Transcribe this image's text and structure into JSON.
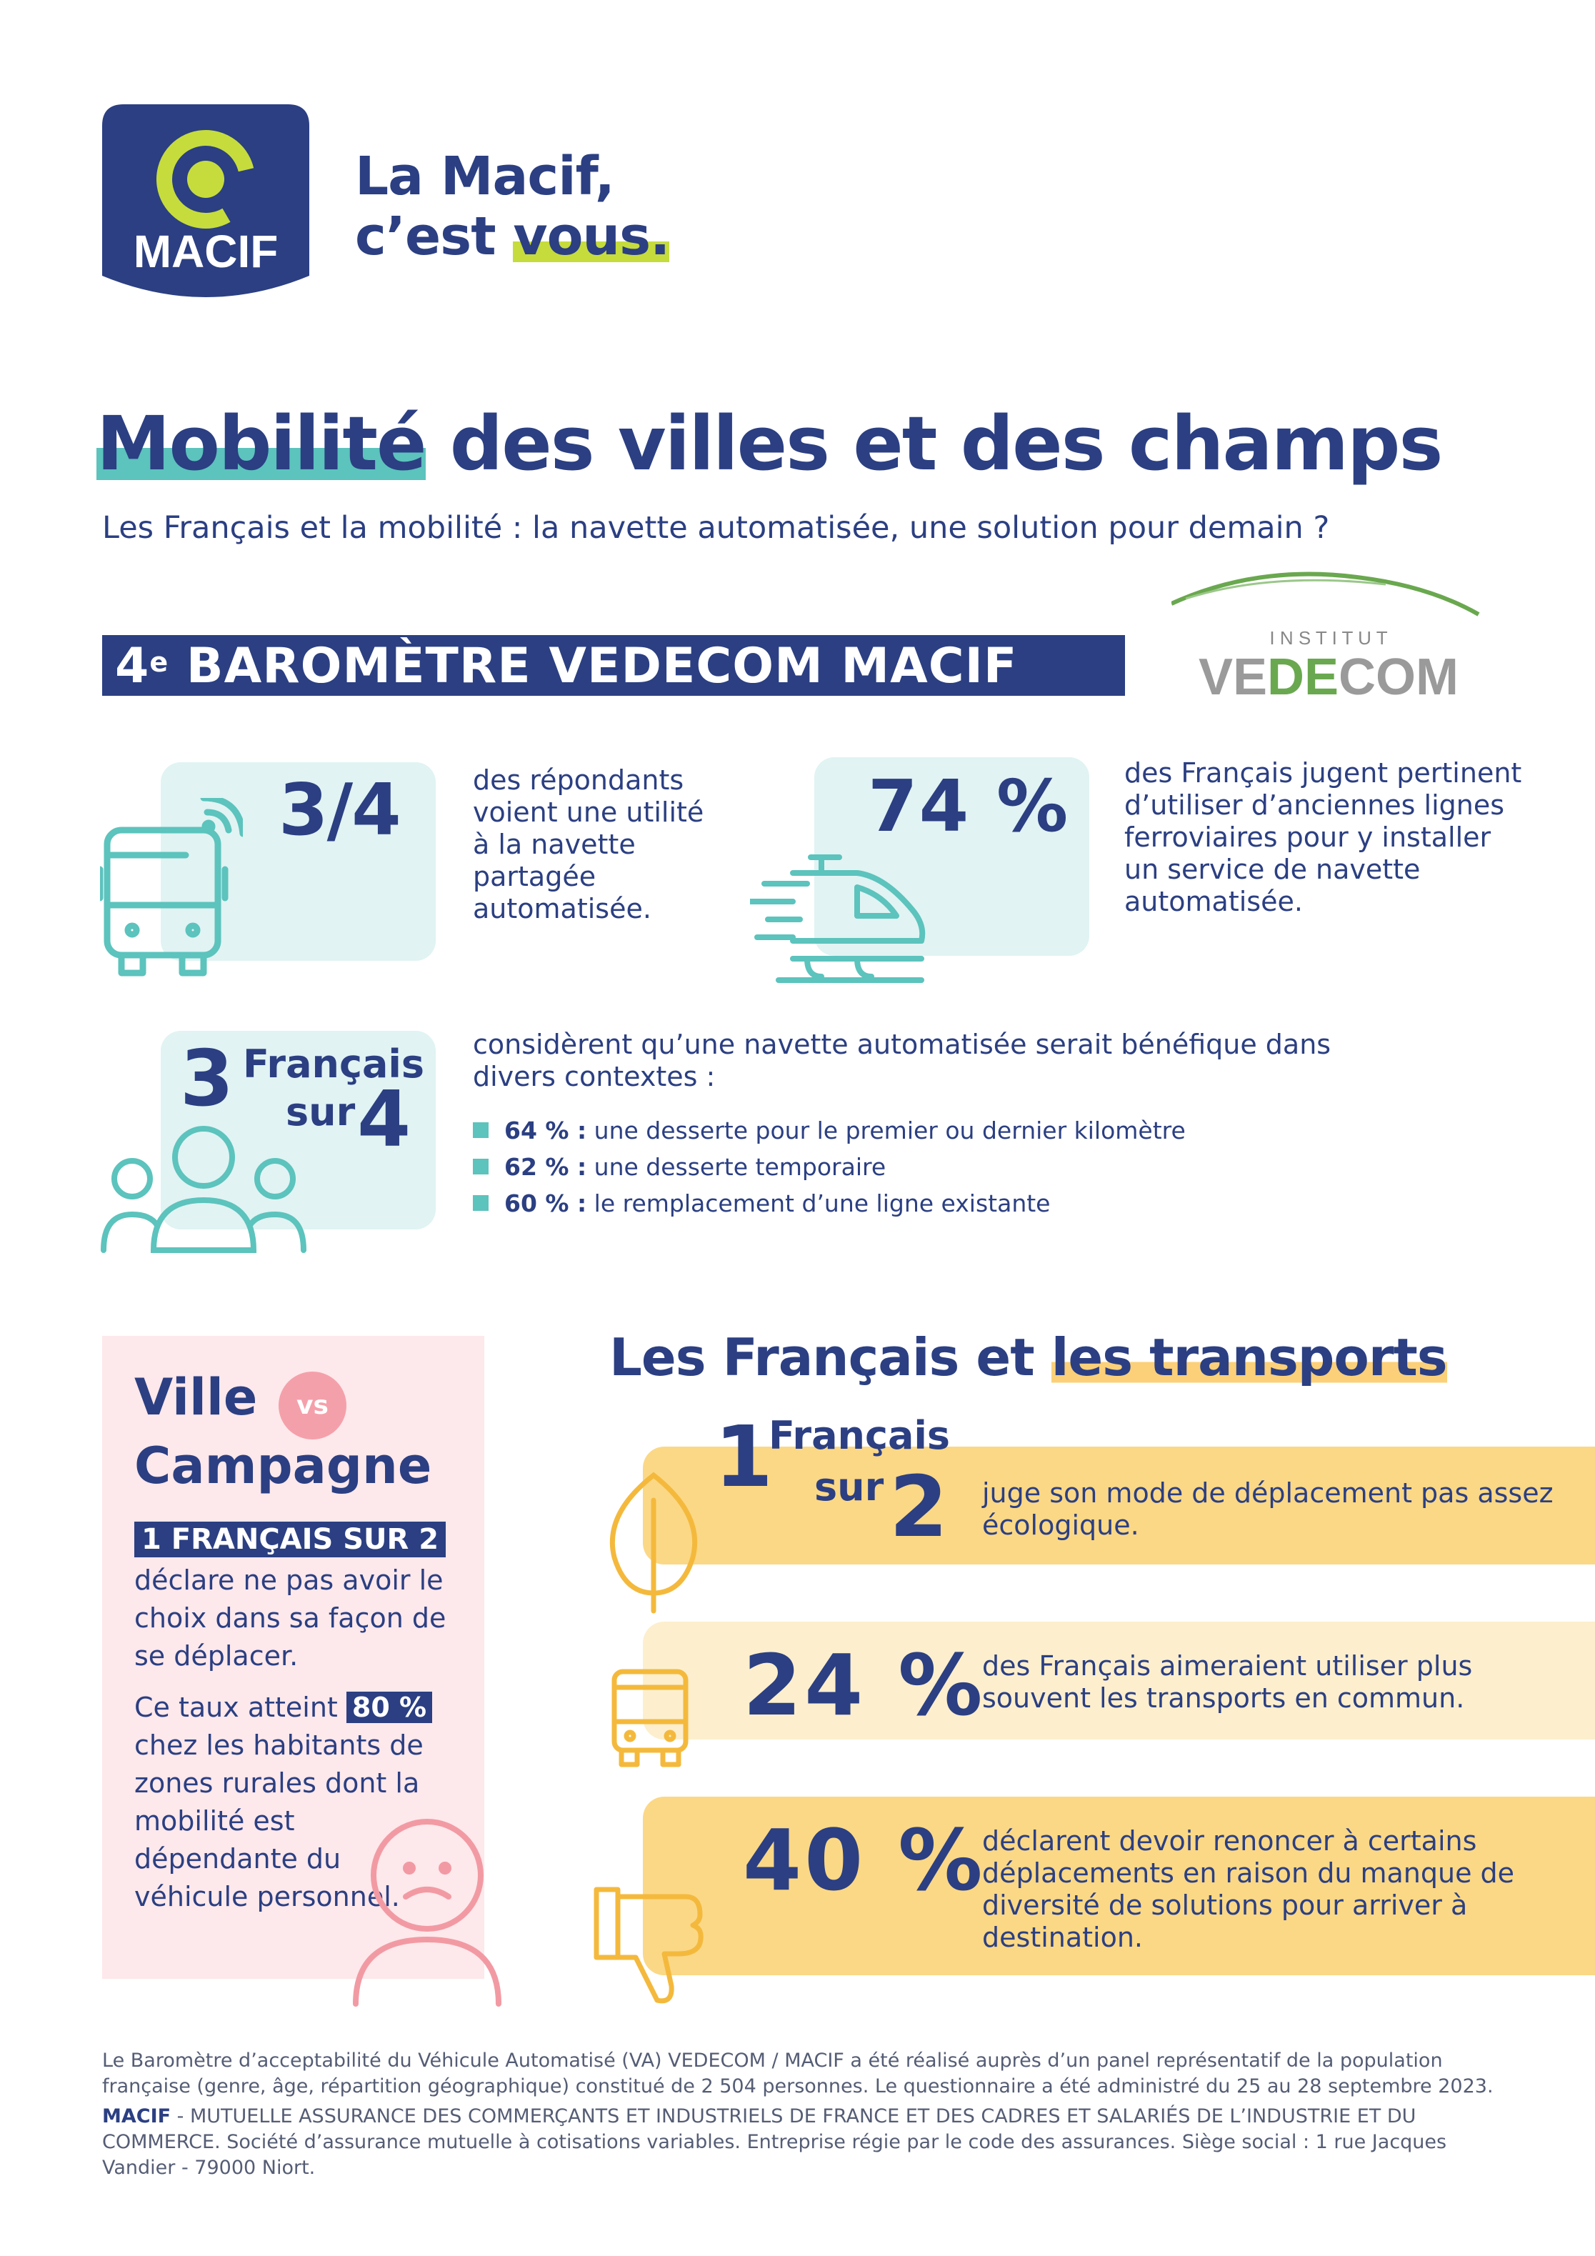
{
  "brand": {
    "logo_text": "MACIF",
    "tagline_line1": "La Macif,",
    "tagline_line2_prefix": "c’est ",
    "tagline_line2_highlight": "vous."
  },
  "header": {
    "title_highlight": "Mobilité",
    "title_rest": " des villes et des champs",
    "subtitle": "Les Français et la mobilité : la navette automatisée, une solution pour demain ?"
  },
  "barometer": {
    "number": "4",
    "suffix": "e",
    "label": " BAROMÈTRE VEDECOM MACIF",
    "partner_top": "I N S T I T U T",
    "partner_name_1": "VE",
    "partner_name_2": "DE",
    "partner_name_3": "COM"
  },
  "stats_top": [
    {
      "value": "3/4",
      "text": "des répondants voient une utilité à la navette partagée automatisée."
    },
    {
      "value": "74 %",
      "text": "des Français jugent pertinent d’utiliser d’anciennes lignes ferroviaires pour y installer un service de navette automatisée."
    }
  ],
  "stat_three_of_four": {
    "num": "3",
    "word1": "Français",
    "word2": "sur",
    "den": "4",
    "text": "considèrent qu’une navette automatisée serait bénéfique dans divers contextes :",
    "bullets": [
      {
        "pct": "64 % :",
        "label": " une desserte pour le premier ou dernier kilomètre"
      },
      {
        "pct": "62 % :",
        "label": " une desserte temporaire"
      },
      {
        "pct": "60 % :",
        "label": " le remplacement d’une ligne existante"
      }
    ]
  },
  "ville_campagne": {
    "line1": "Ville",
    "vs": "vs",
    "line2": "Campagne",
    "band": "1 FRANÇAIS SUR 2",
    "text1": "déclare ne pas avoir le choix dans sa façon de se déplacer.",
    "text2_prefix": "Ce taux atteint ",
    "text2_pct": "80 %",
    "text2_suffix": " chez les habitants de zones rurales dont la mobilité est dépendante du véhicule personnel."
  },
  "transports": {
    "title_prefix": "Les Français et ",
    "title_highlight": "les transports",
    "items": [
      {
        "num": "1",
        "word1": "Français",
        "word2": "sur",
        "den": "2",
        "text": "juge son mode de déplacement pas assez écologique."
      },
      {
        "value": "24 %",
        "text": "des Français aimeraient utiliser plus souvent les transports en commun."
      },
      {
        "value": "40 %",
        "text": "déclarent devoir renoncer à certains déplacements en raison du manque de diversité de solutions pour arriver à destination."
      }
    ]
  },
  "footer": {
    "note": "Le Baromètre d’acceptabilité du Véhicule Automatisé (VA) VEDECOM / MACIF a été réalisé auprès d’un panel représentatif de la population française (genre, âge, répartition géographique) constitué de 2 504 personnes. Le questionnaire a été administré du 25 au 28 septembre 2023.",
    "company_bold": "MACIF",
    "company_rest": " - MUTUELLE ASSURANCE DES COMMERÇANTS ET INDUSTRIELS DE FRANCE ET DES CADRES ET SALARIÉS DE L’INDUSTRIE ET DU COMMERCE. Société d’assurance mutuelle à cotisations variables. Entreprise régie par le code des assurances. Siège social : 1 rue Jacques Vandier - 79000 Niort."
  },
  "colors": {
    "navy": "#2b3f82",
    "teal": "#5cc3bd",
    "lime": "#c6dc3c",
    "pink": "#f4a0aa",
    "yellow": "#fbd886"
  },
  "icons": [
    "macif-logo",
    "vedecom-logo",
    "bus-wifi-icon",
    "train-icon",
    "people-icon",
    "sad-face-icon",
    "leaf-icon",
    "bus-icon",
    "thumbs-down-icon"
  ]
}
